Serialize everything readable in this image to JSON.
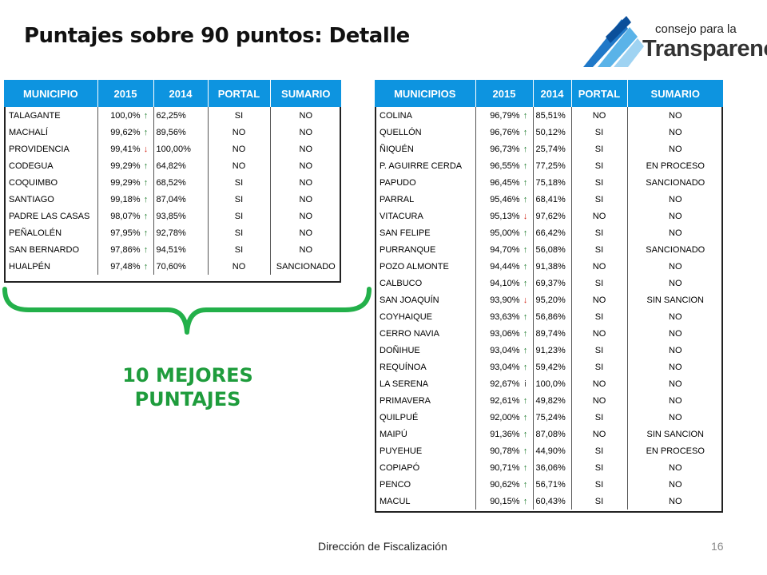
{
  "title": "Puntajes sobre 90 puntos: Detalle",
  "logo": {
    "line1": "consejo para la",
    "line2": "Transparencia"
  },
  "left_table": {
    "headers": [
      "MUNICIPIO",
      "2015",
      "2014",
      "PORTAL",
      "SUMARIO"
    ],
    "rows": [
      {
        "name": "TALAGANTE",
        "y2015": "100,0%",
        "trend": "up",
        "y2014": "62,25%",
        "portal": "SI",
        "sumario": "NO"
      },
      {
        "name": "MACHALÍ",
        "y2015": "99,62%",
        "trend": "up",
        "y2014": "89,56%",
        "portal": "NO",
        "sumario": "NO"
      },
      {
        "name": "PROVIDENCIA",
        "y2015": "99,41%",
        "trend": "down",
        "y2014": "100,00%",
        "portal": "NO",
        "sumario": "NO"
      },
      {
        "name": "CODEGUA",
        "y2015": "99,29%",
        "trend": "up",
        "y2014": "64,82%",
        "portal": "NO",
        "sumario": "NO"
      },
      {
        "name": "COQUIMBO",
        "y2015": "99,29%",
        "trend": "up",
        "y2014": "68,52%",
        "portal": "SI",
        "sumario": "NO"
      },
      {
        "name": "SANTIAGO",
        "y2015": "99,18%",
        "trend": "up",
        "y2014": "87,04%",
        "portal": "SI",
        "sumario": "NO"
      },
      {
        "name": "PADRE LAS CASAS",
        "y2015": "98,07%",
        "trend": "up",
        "y2014": "93,85%",
        "portal": "SI",
        "sumario": "NO"
      },
      {
        "name": "PEÑALOLÉN",
        "y2015": "97,95%",
        "trend": "up",
        "y2014": "92,78%",
        "portal": "SI",
        "sumario": "NO"
      },
      {
        "name": "SAN BERNARDO",
        "y2015": "97,86%",
        "trend": "up",
        "y2014": "94,51%",
        "portal": "SI",
        "sumario": "NO"
      },
      {
        "name": "HUALPÉN",
        "y2015": "97,48%",
        "trend": "up",
        "y2014": "70,60%",
        "portal": "NO",
        "sumario": "SANCIONADO"
      }
    ]
  },
  "right_table": {
    "headers": [
      "MUNICIPIOS",
      "2015",
      "2014",
      "PORTAL",
      "SUMARIO"
    ],
    "rows": [
      {
        "name": "COLINA",
        "y2015": "96,79%",
        "trend": "up",
        "y2014": "85,51%",
        "portal": "NO",
        "sumario": "NO"
      },
      {
        "name": "QUELLÓN",
        "y2015": "96,76%",
        "trend": "up",
        "y2014": "50,12%",
        "portal": "SI",
        "sumario": "NO"
      },
      {
        "name": "ÑIQUÉN",
        "y2015": "96,73%",
        "trend": "up",
        "y2014": "25,74%",
        "portal": "SI",
        "sumario": "NO"
      },
      {
        "name": "P. AGUIRRE CERDA",
        "y2015": "96,55%",
        "trend": "up",
        "y2014": "77,25%",
        "portal": "SI",
        "sumario": "EN PROCESO"
      },
      {
        "name": "PAPUDO",
        "y2015": "96,45%",
        "trend": "up",
        "y2014": "75,18%",
        "portal": "SI",
        "sumario": "SANCIONADO"
      },
      {
        "name": "PARRAL",
        "y2015": "95,46%",
        "trend": "up",
        "y2014": "68,41%",
        "portal": "SI",
        "sumario": "NO"
      },
      {
        "name": "VITACURA",
        "y2015": "95,13%",
        "trend": "down",
        "y2014": "97,62%",
        "portal": "NO",
        "sumario": "NO"
      },
      {
        "name": "SAN FELIPE",
        "y2015": "95,00%",
        "trend": "up",
        "y2014": "66,42%",
        "portal": "SI",
        "sumario": "NO"
      },
      {
        "name": "PURRANQUE",
        "y2015": "94,70%",
        "trend": "up",
        "y2014": "56,08%",
        "portal": "SI",
        "sumario": "SANCIONADO"
      },
      {
        "name": "POZO ALMONTE",
        "y2015": "94,44%",
        "trend": "up",
        "y2014": "91,38%",
        "portal": "NO",
        "sumario": "NO"
      },
      {
        "name": "CALBUCO",
        "y2015": "94,10%",
        "trend": "up",
        "y2014": "69,37%",
        "portal": "SI",
        "sumario": "NO"
      },
      {
        "name": "SAN JOAQUÍN",
        "y2015": "93,90%",
        "trend": "down",
        "y2014": "95,20%",
        "portal": "NO",
        "sumario": "SIN SANCION"
      },
      {
        "name": "COYHAIQUE",
        "y2015": "93,63%",
        "trend": "up",
        "y2014": "56,86%",
        "portal": "SI",
        "sumario": "NO"
      },
      {
        "name": "CERRO NAVIA",
        "y2015": "93,06%",
        "trend": "up",
        "y2014": "89,74%",
        "portal": "NO",
        "sumario": "NO"
      },
      {
        "name": "DOÑIHUE",
        "y2015": "93,04%",
        "trend": "up",
        "y2014": "91,23%",
        "portal": "SI",
        "sumario": "NO"
      },
      {
        "name": "REQUÍNOA",
        "y2015": "93,04%",
        "trend": "up",
        "y2014": "59,42%",
        "portal": "SI",
        "sumario": "NO"
      },
      {
        "name": "LA SERENA",
        "y2015": "92,67%",
        "trend": "neutral",
        "y2014": "100,0%",
        "portal": "NO",
        "sumario": "NO"
      },
      {
        "name": "PRIMAVERA",
        "y2015": "92,61%",
        "trend": "up",
        "y2014": "49,82%",
        "portal": "NO",
        "sumario": "NO"
      },
      {
        "name": "QUILPUÉ",
        "y2015": "92,00%",
        "trend": "up",
        "y2014": "75,24%",
        "portal": "SI",
        "sumario": "NO"
      },
      {
        "name": "MAIPÚ",
        "y2015": "91,36%",
        "trend": "up",
        "y2014": "87,08%",
        "portal": "NO",
        "sumario": "SIN SANCION"
      },
      {
        "name": "PUYEHUE",
        "y2015": "90,78%",
        "trend": "up",
        "y2014": "44,90%",
        "portal": "SI",
        "sumario": "EN PROCESO"
      },
      {
        "name": "COPIAPÓ",
        "y2015": "90,71%",
        "trend": "up",
        "y2014": "36,06%",
        "portal": "SI",
        "sumario": "NO"
      },
      {
        "name": "PENCO",
        "y2015": "90,62%",
        "trend": "up",
        "y2014": "56,71%",
        "portal": "SI",
        "sumario": "NO"
      },
      {
        "name": "MACUL",
        "y2015": "90,15%",
        "trend": "up",
        "y2014": "60,43%",
        "portal": "SI",
        "sumario": "NO"
      }
    ]
  },
  "trend_glyphs": {
    "up": "↑",
    "down": "↓",
    "neutral": "i"
  },
  "trend_icons": {
    "up": "arrow-up-icon",
    "down": "arrow-down-icon",
    "neutral": "info-icon"
  },
  "colors": {
    "header": "#0d94e0",
    "up": "#1b7a2a",
    "down": "#d02010",
    "best_label": "#1e9c3c",
    "brace": "#23b04a"
  },
  "best_label": "10 MEJORES PUNTAJES",
  "footer": "Dirección de Fiscalización",
  "page_number": "16"
}
